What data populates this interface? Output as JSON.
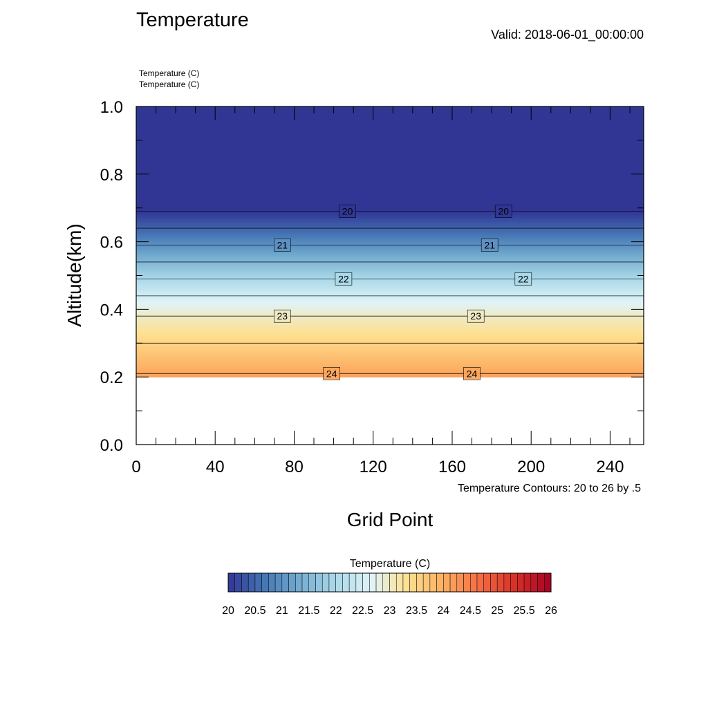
{
  "chart_data": {
    "type": "heatmap",
    "title": "Temperature",
    "valid_label": "Valid: 2018-06-01_00:00:00",
    "field_labels": [
      "Temperature   (C)",
      "Temperature   (C)"
    ],
    "xlabel": "Grid Point",
    "ylabel": "Altitude(km)",
    "xlim": [
      0,
      257
    ],
    "ylim": [
      0,
      1.0
    ],
    "x_ticks": [
      0,
      40,
      80,
      120,
      160,
      200,
      240
    ],
    "y_ticks": [
      0.0,
      0.2,
      0.4,
      0.6,
      0.8,
      1.0
    ],
    "x_tick_labels": [
      "0",
      "40",
      "80",
      "120",
      "160",
      "200",
      "240"
    ],
    "y_tick_labels": [
      "0.0",
      "0.2",
      "0.4",
      "0.6",
      "0.8",
      "1.0"
    ],
    "contour_note": "Temperature Contours: 20 to 26 by .5",
    "data_bottom_altitude": 0.2,
    "temperature_profile": [
      {
        "altitude": 0.2,
        "value": 24.15
      },
      {
        "altitude": 0.3,
        "value": 23.5
      },
      {
        "altitude": 0.38,
        "value": 23.0
      },
      {
        "altitude": 0.44,
        "value": 22.5
      },
      {
        "altitude": 0.49,
        "value": 22.0
      },
      {
        "altitude": 0.54,
        "value": 21.5
      },
      {
        "altitude": 0.59,
        "value": 21.0
      },
      {
        "altitude": 0.64,
        "value": 20.5
      },
      {
        "altitude": 0.69,
        "value": 20.0
      },
      {
        "altitude": 0.73,
        "value": 19.9
      },
      {
        "altitude": 1.0,
        "value": 19.9
      }
    ],
    "contour_lines": [
      {
        "altitude": 0.69,
        "value": 20.0
      },
      {
        "altitude": 0.64,
        "value": 20.5
      },
      {
        "altitude": 0.59,
        "value": 21.0
      },
      {
        "altitude": 0.54,
        "value": 21.5
      },
      {
        "altitude": 0.49,
        "value": 22.0
      },
      {
        "altitude": 0.44,
        "value": 22.5
      },
      {
        "altitude": 0.38,
        "value": 23.0
      },
      {
        "altitude": 0.3,
        "value": 23.5
      },
      {
        "altitude": 0.21,
        "value": 24.0
      }
    ],
    "contour_labels": [
      {
        "text": "20",
        "x": 107,
        "altitude": 0.69
      },
      {
        "text": "20",
        "x": 186,
        "altitude": 0.69
      },
      {
        "text": "21",
        "x": 74,
        "altitude": 0.59
      },
      {
        "text": "21",
        "x": 179,
        "altitude": 0.59
      },
      {
        "text": "22",
        "x": 105,
        "altitude": 0.49
      },
      {
        "text": "22",
        "x": 196,
        "altitude": 0.49
      },
      {
        "text": "23",
        "x": 74,
        "altitude": 0.38
      },
      {
        "text": "23",
        "x": 172,
        "altitude": 0.38
      },
      {
        "text": "24",
        "x": 99,
        "altitude": 0.21
      },
      {
        "text": "24",
        "x": 170,
        "altitude": 0.21
      }
    ],
    "colorbar": {
      "title": "Temperature  (C)",
      "min": 20,
      "max": 26,
      "step": 0.125,
      "tick_labels": [
        "20",
        "20.5",
        "21",
        "21.5",
        "22",
        "22.5",
        "23",
        "23.5",
        "24",
        "24.5",
        "25",
        "25.5",
        "26"
      ],
      "color_stops": [
        "#313695",
        "#4575b4",
        "#74add1",
        "#abd9e9",
        "#e0f3f8",
        "#fee090",
        "#fdae61",
        "#f46d43",
        "#d73027",
        "#a50026"
      ]
    }
  }
}
